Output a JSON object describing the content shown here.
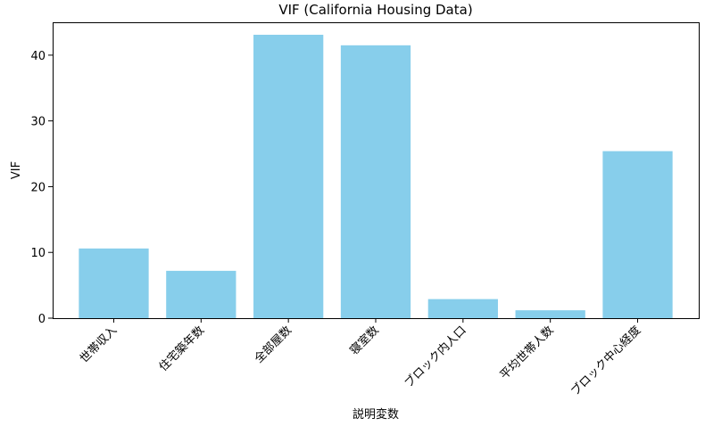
{
  "chart_data": {
    "type": "bar",
    "title": "VIF  (California Housing Data)",
    "xlabel": "説明変数",
    "ylabel": "VIF",
    "categories": [
      "世帯収入",
      "住宅築年数",
      "全部屋数",
      "寝室数",
      "ブロック内人口",
      "平均世帯人数",
      "ブロック中心経度"
    ],
    "values": [
      10.6,
      7.2,
      43.1,
      41.5,
      2.9,
      1.2,
      25.4
    ],
    "ylim": [
      0,
      45
    ],
    "yticks": [
      0,
      10,
      20,
      30,
      40
    ],
    "bar_color": "#87CEEB",
    "grid": false,
    "legend": "none"
  }
}
